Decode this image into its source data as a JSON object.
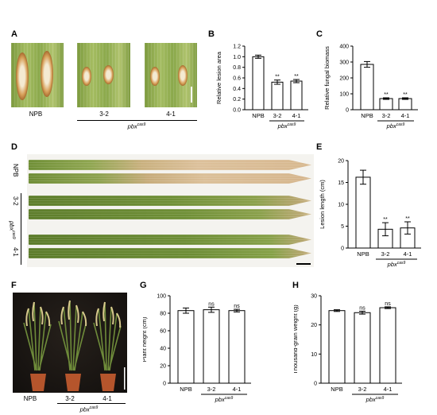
{
  "panels": {
    "A": {
      "letter": "A",
      "labels": [
        "NPB",
        "3-2",
        "4-1"
      ],
      "genotype": "pbx",
      "genotype_sup": "cas9"
    },
    "B": {
      "letter": "B"
    },
    "C": {
      "letter": "C"
    },
    "D": {
      "letter": "D",
      "labels": [
        "NPB",
        "3-2",
        "4-1"
      ],
      "genotype": "pbx",
      "genotype_sup": "cas9"
    },
    "E": {
      "letter": "E"
    },
    "F": {
      "letter": "F",
      "labels": [
        "NPB",
        "3-2",
        "4-1"
      ],
      "genotype": "pbx",
      "genotype_sup": "cas9"
    },
    "G": {
      "letter": "G"
    },
    "H": {
      "letter": "H"
    }
  },
  "colors": {
    "leaf_green": "#6f8f36",
    "lesion_tan": "#d8b48a",
    "photo_bg": "#1a1613"
  },
  "chart_data": [
    {
      "id": "B",
      "type": "bar",
      "categories": [
        "NPB",
        "3-2",
        "4-1"
      ],
      "values": [
        1.0,
        0.52,
        0.54
      ],
      "errors": [
        0.03,
        0.04,
        0.03
      ],
      "significance": [
        "",
        "**",
        "**"
      ],
      "ylabel": "Relative lesion area",
      "ylim": [
        0,
        1.2
      ],
      "yticks": [
        0.0,
        0.2,
        0.4,
        0.6,
        0.8,
        1.0,
        1.2
      ],
      "tick_decimals": 1,
      "genotype": "pbx",
      "genotype_sup": "cas9"
    },
    {
      "id": "C",
      "type": "bar",
      "categories": [
        "NPB",
        "3-2",
        "4-1"
      ],
      "values": [
        285,
        70,
        70
      ],
      "errors": [
        18,
        5,
        5
      ],
      "significance": [
        "",
        "**",
        "**"
      ],
      "ylabel": "Relative fungal biomass",
      "ylim": [
        0,
        400
      ],
      "yticks": [
        0,
        100,
        200,
        300,
        400
      ],
      "tick_decimals": 0,
      "genotype": "pbx",
      "genotype_sup": "cas9"
    },
    {
      "id": "E",
      "type": "bar",
      "categories": [
        "NPB",
        "3-2",
        "4-1"
      ],
      "values": [
        16.2,
        4.3,
        4.6
      ],
      "errors": [
        1.6,
        1.5,
        1.4
      ],
      "significance": [
        "",
        "**",
        "**"
      ],
      "ylabel": "Lesion length (cm)",
      "ylim": [
        0,
        20
      ],
      "yticks": [
        0,
        5,
        10,
        15,
        20
      ],
      "tick_decimals": 0,
      "genotype": "pbx",
      "genotype_sup": "cas9"
    },
    {
      "id": "G",
      "type": "bar",
      "categories": [
        "NPB",
        "3-2",
        "4-1"
      ],
      "values": [
        83,
        84,
        83
      ],
      "errors": [
        3,
        3,
        1.5
      ],
      "significance": [
        "",
        "ns",
        "ns"
      ],
      "ylabel": "Plant height (cm)",
      "ylim": [
        0,
        100
      ],
      "yticks": [
        0,
        20,
        40,
        60,
        80,
        100
      ],
      "tick_decimals": 0,
      "genotype": "pbx",
      "genotype_sup": "cas9"
    },
    {
      "id": "H",
      "type": "bar",
      "categories": [
        "NPB",
        "3-2",
        "4-1"
      ],
      "values": [
        24.9,
        24.2,
        25.9
      ],
      "errors": [
        0.3,
        0.5,
        0.3
      ],
      "significance": [
        "",
        "ns",
        "ns"
      ],
      "ylabel": "Thousand-grain weight (g)",
      "ylim": [
        0,
        30
      ],
      "yticks": [
        0,
        10,
        20,
        30
      ],
      "tick_decimals": 0,
      "genotype": "pbx",
      "genotype_sup": "cas9"
    }
  ]
}
